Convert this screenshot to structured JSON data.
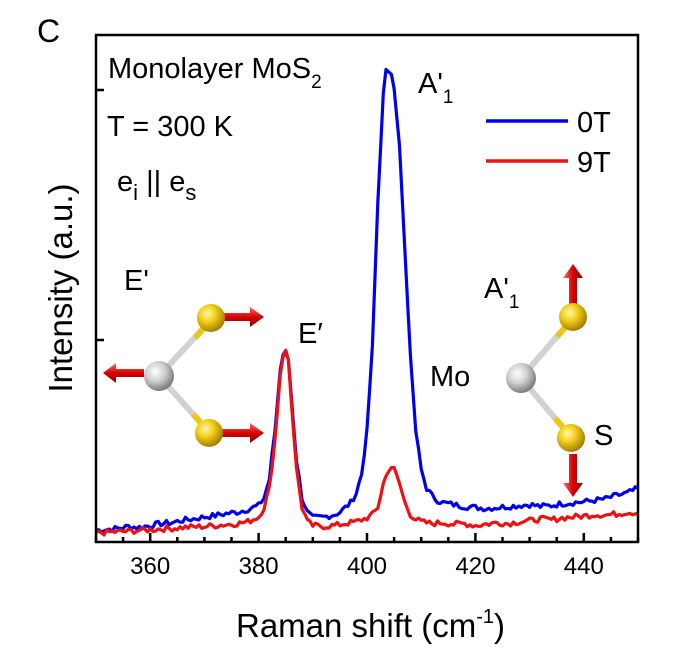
{
  "panel_label": "C",
  "chart_data": {
    "type": "line",
    "xlabel_main": "Raman shift (cm",
    "xlabel_sup": "-1",
    "xlabel_close": ")",
    "ylabel": "Intensity (a.u.)",
    "xlim": [
      350,
      450
    ],
    "ylim": [
      0,
      1
    ],
    "x_ticks": [
      360,
      380,
      400,
      420,
      440
    ],
    "x_tick_labels": [
      "360",
      "380",
      "400",
      "420",
      "440"
    ],
    "legend_position": "top-right",
    "series": [
      {
        "name": "0T",
        "color": "#0000ee",
        "x": [
          350,
          352,
          354,
          356,
          358,
          360,
          362,
          364,
          366,
          368,
          370,
          372,
          374,
          376,
          378,
          380,
          381,
          382,
          383,
          384,
          384.5,
          385,
          385.5,
          386,
          387,
          388,
          389,
          390,
          392,
          394,
          395,
          396,
          397,
          398,
          399,
          400,
          401,
          402,
          403,
          403.5,
          404,
          404.5,
          405,
          406,
          407,
          408,
          409,
          410,
          411,
          412,
          413,
          414,
          415,
          416,
          418,
          420,
          422,
          424,
          426,
          428,
          430,
          432,
          434,
          436,
          438,
          440,
          442,
          444,
          446,
          448,
          450
        ],
        "values": [
          0.012,
          0.014,
          0.016,
          0.02,
          0.018,
          0.022,
          0.026,
          0.028,
          0.033,
          0.036,
          0.04,
          0.043,
          0.047,
          0.05,
          0.056,
          0.064,
          0.08,
          0.12,
          0.22,
          0.35,
          0.38,
          0.39,
          0.37,
          0.3,
          0.16,
          0.08,
          0.05,
          0.038,
          0.04,
          0.045,
          0.05,
          0.06,
          0.07,
          0.09,
          0.13,
          0.22,
          0.4,
          0.7,
          0.93,
          0.98,
          0.975,
          0.97,
          0.94,
          0.82,
          0.6,
          0.38,
          0.22,
          0.14,
          0.1,
          0.085,
          0.075,
          0.07,
          0.068,
          0.066,
          0.062,
          0.06,
          0.058,
          0.06,
          0.062,
          0.064,
          0.066,
          0.062,
          0.064,
          0.068,
          0.07,
          0.072,
          0.075,
          0.078,
          0.085,
          0.09,
          0.1
        ]
      },
      {
        "name": "9T",
        "color": "#ee1111",
        "x": [
          350,
          352,
          354,
          356,
          358,
          360,
          362,
          364,
          366,
          368,
          370,
          372,
          374,
          376,
          378,
          380,
          381,
          382,
          383,
          384,
          384.5,
          385,
          385.5,
          386,
          387,
          388,
          389,
          390,
          392,
          394,
          396,
          398,
          400,
          401,
          402,
          403,
          404,
          404.5,
          405,
          406,
          407,
          408,
          409,
          410,
          412,
          414,
          416,
          418,
          420,
          422,
          424,
          426,
          428,
          430,
          432,
          434,
          436,
          438,
          440,
          442,
          444,
          446,
          448,
          450
        ],
        "values": [
          0.006,
          0.008,
          0.009,
          0.01,
          0.012,
          0.013,
          0.015,
          0.016,
          0.018,
          0.019,
          0.02,
          0.022,
          0.024,
          0.026,
          0.03,
          0.04,
          0.06,
          0.1,
          0.2,
          0.34,
          0.375,
          0.39,
          0.37,
          0.29,
          0.14,
          0.06,
          0.03,
          0.022,
          0.02,
          0.022,
          0.026,
          0.03,
          0.038,
          0.045,
          0.06,
          0.11,
          0.14,
          0.145,
          0.14,
          0.11,
          0.07,
          0.045,
          0.035,
          0.03,
          0.026,
          0.028,
          0.025,
          0.026,
          0.022,
          0.025,
          0.028,
          0.026,
          0.03,
          0.032,
          0.036,
          0.034,
          0.038,
          0.04,
          0.042,
          0.045,
          0.044,
          0.046,
          0.05,
          0.048
        ]
      }
    ],
    "annotations": {
      "sample_label": "Monolayer MoS",
      "sample_sub": "2",
      "temperature": "T = 300 K",
      "polarization_e1": "e",
      "polarization_sub1": "i",
      "polarization_mid": " || e",
      "polarization_sub2": "s",
      "peak_E": "E′",
      "peak_A": "A'",
      "peak_A_sub": "1",
      "mode_E_label": "E'",
      "mode_A_label": "A'",
      "mode_A_sub": "1",
      "atom_Mo": "Mo",
      "atom_S": "S"
    }
  }
}
